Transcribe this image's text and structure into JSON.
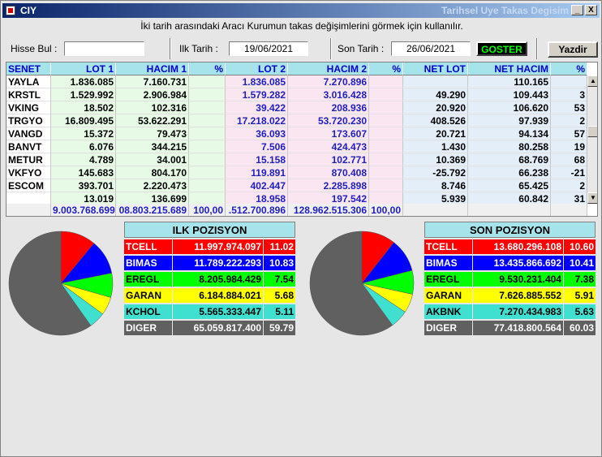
{
  "window": {
    "title_left": "CIY",
    "title_right": "Tarihsel Uye Takas Degisim",
    "min_label": "_",
    "close_label": "X"
  },
  "info_text": "İki tarih arasındaki  Aracı Kurumun takas değişimlerini görmek için kullanılır.",
  "controls": {
    "hisse_label": "Hisse Bul :",
    "hisse_value": "",
    "ilk_label": "Ilk Tarih :",
    "ilk_value": "19/06/2021",
    "son_label": "Son Tarih :",
    "son_value": "26/06/2021",
    "goster_label": "GOSTER",
    "yazdir_label": "Yazdir"
  },
  "grid": {
    "headers": [
      "SENET",
      "LOT 1",
      "HACIM 1",
      "%",
      "LOT 2",
      "HACIM 2",
      "%",
      "NET LOT",
      "NET HACIM",
      "%"
    ],
    "rows": [
      [
        "YAYLA",
        "1.836.085",
        "7.160.731",
        "",
        "1.836.085",
        "7.270.896",
        "",
        "",
        "110.165",
        ""
      ],
      [
        "KRSTL",
        "1.529.992",
        "2.906.984",
        "",
        "1.579.282",
        "3.016.428",
        "",
        "49.290",
        "109.443",
        "3"
      ],
      [
        "VKING",
        "18.502",
        "102.316",
        "",
        "39.422",
        "208.936",
        "",
        "20.920",
        "106.620",
        "53"
      ],
      [
        "TRGYO",
        "16.809.495",
        "53.622.291",
        "",
        "17.218.022",
        "53.720.230",
        "",
        "408.526",
        "97.939",
        "2"
      ],
      [
        "VANGD",
        "15.372",
        "79.473",
        "",
        "36.093",
        "173.607",
        "",
        "20.721",
        "94.134",
        "57"
      ],
      [
        "BANVT",
        "6.076",
        "344.215",
        "",
        "7.506",
        "424.473",
        "",
        "1.430",
        "80.258",
        "19"
      ],
      [
        "METUR",
        "4.789",
        "34.001",
        "",
        "15.158",
        "102.771",
        "",
        "10.369",
        "68.769",
        "68"
      ],
      [
        "VKFYO",
        "145.683",
        "804.170",
        "",
        "119.891",
        "870.408",
        "",
        "-25.792",
        "66.238",
        "-21"
      ],
      [
        "ESCOM",
        "393.701",
        "2.220.473",
        "",
        "402.447",
        "2.285.898",
        "",
        "8.746",
        "65.425",
        "2"
      ],
      [
        "",
        "13.019",
        "136.699",
        "",
        "18.958",
        "197.542",
        "",
        "5.939",
        "60.842",
        "31"
      ]
    ],
    "totals": [
      "",
      "9.003.768.699",
      "08.803.215.689",
      "100,00",
      ".512.700.896",
      "128.962.515.306",
      "100,00",
      "",
      "",
      ""
    ]
  },
  "ilk_pozisyon": {
    "title": "ILK POZISYON",
    "rows": [
      {
        "name": "TCELL",
        "value": "11.997.974.097",
        "pct": "11.02",
        "bg": "#ff0000",
        "fg": "#ffffff"
      },
      {
        "name": "BIMAS",
        "value": "11.789.222.293",
        "pct": "10.83",
        "bg": "#0000ff",
        "fg": "#ffffff"
      },
      {
        "name": "EREGL",
        "value": "8.205.984.429",
        "pct": "7.54",
        "bg": "#00ff00",
        "fg": "#000000"
      },
      {
        "name": "GARAN",
        "value": "6.184.884.021",
        "pct": "5.68",
        "bg": "#ffff00",
        "fg": "#000000"
      },
      {
        "name": "KCHOL",
        "value": "5.565.333.447",
        "pct": "5.11",
        "bg": "#40e0d0",
        "fg": "#000000"
      },
      {
        "name": "DIGER",
        "value": "65.059.817.400",
        "pct": "59.79",
        "bg": "#606060",
        "fg": "#ffffff"
      }
    ]
  },
  "son_pozisyon": {
    "title": "SON POZISYON",
    "rows": [
      {
        "name": "TCELL",
        "value": "13.680.296.108",
        "pct": "10.60",
        "bg": "#ff0000",
        "fg": "#ffffff"
      },
      {
        "name": "BIMAS",
        "value": "13.435.866.692",
        "pct": "10.41",
        "bg": "#0000ff",
        "fg": "#ffffff"
      },
      {
        "name": "EREGL",
        "value": "9.530.231.404",
        "pct": "7.38",
        "bg": "#00ff00",
        "fg": "#000000"
      },
      {
        "name": "GARAN",
        "value": "7.626.885.552",
        "pct": "5.91",
        "bg": "#ffff00",
        "fg": "#000000"
      },
      {
        "name": "AKBNK",
        "value": "7.270.434.983",
        "pct": "5.63",
        "bg": "#40e0d0",
        "fg": "#000000"
      },
      {
        "name": "DIGER",
        "value": "77.418.800.564",
        "pct": "60.03",
        "bg": "#606060",
        "fg": "#ffffff"
      }
    ]
  }
}
